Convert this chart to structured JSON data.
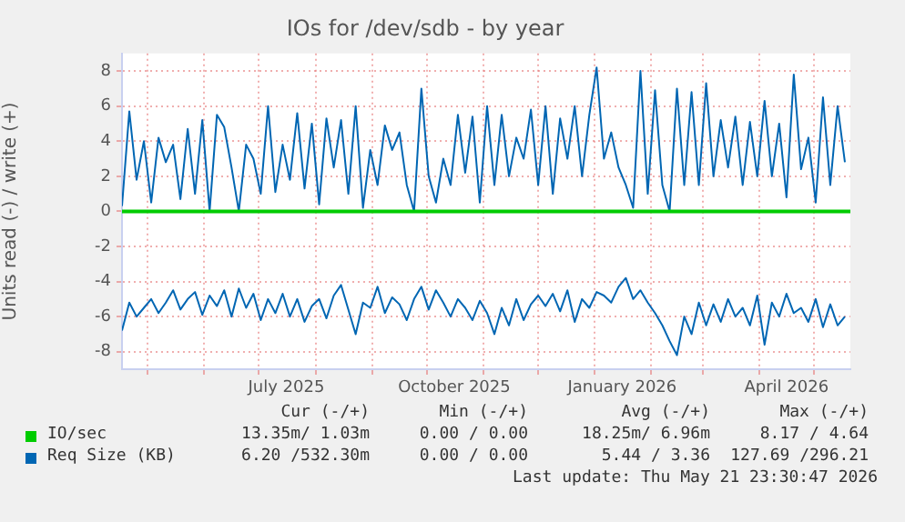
{
  "chart_data": {
    "type": "line",
    "title": "IOs for /dev/sdb - by year",
    "ylabel": "Units read (-) / write (+)",
    "x": [
      "2025-04-17",
      "2025-04-21",
      "2025-04-25",
      "2025-04-29",
      "2025-05-03",
      "2025-05-07",
      "2025-05-11",
      "2025-05-15",
      "2025-05-19",
      "2025-05-23",
      "2025-05-27",
      "2025-05-31",
      "2025-06-04",
      "2025-06-08",
      "2025-06-12",
      "2025-06-16",
      "2025-06-20",
      "2025-06-24",
      "2025-06-28",
      "2025-07-02",
      "2025-07-06",
      "2025-07-10",
      "2025-07-14",
      "2025-07-18",
      "2025-07-22",
      "2025-07-26",
      "2025-07-30",
      "2025-08-03",
      "2025-08-07",
      "2025-08-11",
      "2025-08-15",
      "2025-08-19",
      "2025-08-23",
      "2025-08-27",
      "2025-08-31",
      "2025-09-04",
      "2025-09-08",
      "2025-09-12",
      "2025-09-16",
      "2025-09-20",
      "2025-09-24",
      "2025-09-28",
      "2025-10-02",
      "2025-10-06",
      "2025-10-10",
      "2025-10-14",
      "2025-10-18",
      "2025-10-22",
      "2025-10-26",
      "2025-10-30",
      "2025-11-03",
      "2025-11-07",
      "2025-11-11",
      "2025-11-15",
      "2025-11-19",
      "2025-11-23",
      "2025-11-27",
      "2025-12-01",
      "2025-12-05",
      "2025-12-09",
      "2025-12-13",
      "2025-12-17",
      "2025-12-21",
      "2025-12-25",
      "2025-12-29",
      "2026-01-02",
      "2026-01-06",
      "2026-01-10",
      "2026-01-14",
      "2026-01-18",
      "2026-01-22",
      "2026-01-26",
      "2026-01-30",
      "2026-02-03",
      "2026-02-07",
      "2026-02-11",
      "2026-02-15",
      "2026-02-19",
      "2026-02-23",
      "2026-02-27",
      "2026-03-03",
      "2026-03-07",
      "2026-03-11",
      "2026-03-15",
      "2026-03-19",
      "2026-03-23",
      "2026-03-27",
      "2026-03-31",
      "2026-04-04",
      "2026-04-08",
      "2026-04-12",
      "2026-04-16",
      "2026-04-20",
      "2026-04-24",
      "2026-04-28",
      "2026-05-02",
      "2026-05-06",
      "2026-05-10",
      "2026-05-14",
      "2026-05-18"
    ],
    "series": [
      {
        "name": "Req Size (KB)",
        "color": "#0066b3",
        "values": [
          0.3,
          5.7,
          1.8,
          4.0,
          0.5,
          4.2,
          2.8,
          3.8,
          0.7,
          4.7,
          1.0,
          5.2,
          0.0,
          5.5,
          4.8,
          2.5,
          0.0,
          3.8,
          3.0,
          1.0,
          6.0,
          1.1,
          3.8,
          1.8,
          5.6,
          1.3,
          5.0,
          0.4,
          5.3,
          2.5,
          5.2,
          1.0,
          6.0,
          0.2,
          3.5,
          1.5,
          4.9,
          3.5,
          4.5,
          1.5,
          0.0,
          7.0,
          2.0,
          0.5,
          3.0,
          1.5,
          5.5,
          2.2,
          5.4,
          0.5,
          6.0,
          1.5,
          5.5,
          2.0,
          4.2,
          3.0,
          5.8,
          1.5,
          6.0,
          1.0,
          5.3,
          3.0,
          6.0,
          2.0,
          5.5,
          8.2,
          3.0,
          4.5,
          2.5,
          1.5,
          0.2,
          8.0,
          1.0,
          6.9,
          1.5,
          0.0,
          7.0,
          1.5,
          6.8,
          1.5,
          7.3,
          2.0,
          5.2,
          2.5,
          5.4,
          1.5,
          5.1,
          2.0,
          6.3,
          2.0,
          5.0,
          0.8,
          7.8,
          2.4,
          4.2,
          0.5,
          6.5,
          1.5,
          6.0,
          2.8
        ]
      },
      {
        "color": "#0066b3",
        "values": [
          -6.8,
          -5.2,
          -6.0,
          -5.5,
          -5.0,
          -5.8,
          -5.2,
          -4.5,
          -5.6,
          -5.0,
          -4.6,
          -5.9,
          -4.8,
          -5.4,
          -4.5,
          -6.0,
          -4.4,
          -5.5,
          -4.7,
          -6.2,
          -5.0,
          -5.8,
          -4.7,
          -6.0,
          -5.0,
          -6.3,
          -5.4,
          -5.0,
          -6.1,
          -4.8,
          -4.2,
          -5.6,
          -7.0,
          -5.2,
          -5.5,
          -4.3,
          -5.8,
          -4.9,
          -5.3,
          -6.2,
          -5.0,
          -4.3,
          -5.6,
          -4.5,
          -5.2,
          -6.0,
          -5.0,
          -5.5,
          -6.2,
          -5.1,
          -5.8,
          -7.0,
          -5.5,
          -6.5,
          -5.0,
          -6.2,
          -5.3,
          -4.8,
          -5.4,
          -4.7,
          -5.7,
          -4.5,
          -6.3,
          -5.0,
          -5.5,
          -4.6,
          -4.8,
          -5.2,
          -4.3,
          -3.8,
          -5.0,
          -4.5,
          -5.2,
          -5.8,
          -6.5,
          -7.4,
          -8.2,
          -6.0,
          -7.0,
          -5.2,
          -6.5,
          -5.3,
          -6.3,
          -5.0,
          -6.0,
          -5.5,
          -6.5,
          -4.8,
          -7.6,
          -5.2,
          -6.0,
          -4.7,
          -5.8,
          -5.5,
          -6.3,
          -5.0,
          -6.6,
          -5.3,
          -6.5,
          -6.0
        ]
      },
      {
        "name": "IO/sec",
        "color": "#00cc00",
        "x": [
          "2025-04-17",
          "2026-05-21"
        ],
        "values": [
          0,
          0
        ]
      }
    ],
    "xlim": [
      "2025-04-17",
      "2026-05-21"
    ],
    "xticks": [
      {
        "value": "2025-05-01",
        "label": null
      },
      {
        "value": "2025-06-01",
        "label": null
      },
      {
        "value": "2025-07-01",
        "label": null
      },
      {
        "value": "2025-07-16",
        "label": "July 2025"
      },
      {
        "value": "2025-08-01",
        "label": null
      },
      {
        "value": "2025-09-01",
        "label": null
      },
      {
        "value": "2025-10-01",
        "label": null
      },
      {
        "value": "2025-10-16",
        "label": "October 2025"
      },
      {
        "value": "2025-11-01",
        "label": null
      },
      {
        "value": "2025-12-01",
        "label": null
      },
      {
        "value": "2026-01-01",
        "label": null
      },
      {
        "value": "2026-01-16",
        "label": "January 2026"
      },
      {
        "value": "2026-02-01",
        "label": null
      },
      {
        "value": "2026-03-01",
        "label": null
      },
      {
        "value": "2026-04-01",
        "label": null
      },
      {
        "value": "2026-04-16",
        "label": "April 2026"
      },
      {
        "value": "2026-05-01",
        "label": null
      }
    ],
    "ylim": [
      -9,
      9
    ],
    "yticks": [
      -8,
      -6,
      -4,
      -2,
      0,
      2,
      4,
      6,
      8
    ],
    "grid": true,
    "legend": "bottom",
    "marker": "none",
    "line_style": "solid",
    "annotations": [
      "Cur (-/+)",
      "Min (-/+)",
      "Avg (-/+)",
      "Max (-/+)",
      "13.35m/ 1.03m",
      "0.00 / 0.00",
      "18.25m/ 6.96m",
      "8.17 / 4.64",
      "6.20 /532.30m",
      "0.00 / 0.00",
      "5.44 / 3.36",
      "127.69 /296.21",
      "Last update: Thu May 21 23:30:47 2026"
    ]
  }
}
